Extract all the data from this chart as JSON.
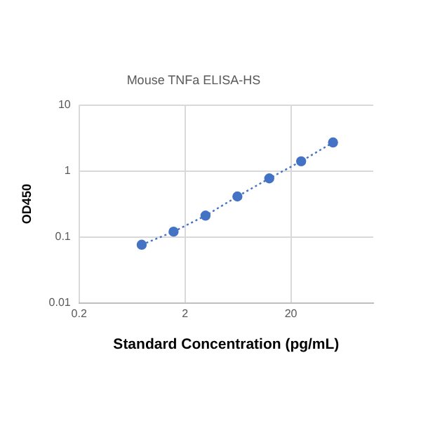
{
  "chart_data": {
    "type": "line",
    "title": "Mouse TNFa ELISA-HS",
    "xlabel": "Standard Concentration (pg/mL)",
    "ylabel": "OD450",
    "x": [
      0.78,
      1.56,
      3.125,
      6.25,
      12.5,
      25,
      50
    ],
    "series": [
      {
        "color": "#4472c4",
        "values": [
          0.076,
          0.12,
          0.21,
          0.41,
          0.77,
          1.4,
          2.7
        ]
      }
    ],
    "log": "xy",
    "xlim": [
      0.2,
      120
    ],
    "xticks": [
      0.2,
      2,
      20
    ],
    "ylim": [
      0.01,
      10
    ],
    "yticks": [
      0.01,
      0.1,
      1,
      10
    ],
    "grid": true,
    "marker": "circle",
    "line_style": "dotted",
    "legend": false
  }
}
